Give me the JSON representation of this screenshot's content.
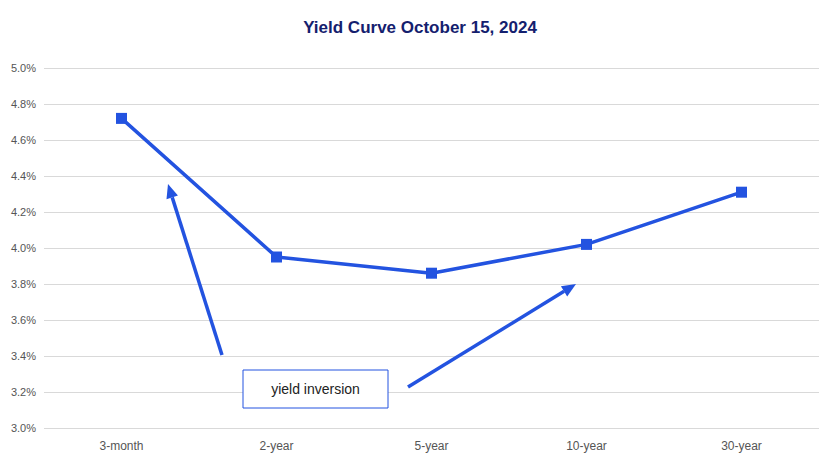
{
  "chart_data": {
    "type": "line",
    "title": "Yield Curve October 15, 2024",
    "categories": [
      "3-month",
      "2-year",
      "5-year",
      "10-year",
      "30-year"
    ],
    "values": [
      4.72,
      3.95,
      3.86,
      4.02,
      4.31
    ],
    "color": "#2353e0",
    "marker": "square",
    "ylim": [
      3.0,
      5.0
    ],
    "yticks": [
      {
        "value": 3.0,
        "label": "3.0%"
      },
      {
        "value": 3.2,
        "label": "3.2%"
      },
      {
        "value": 3.4,
        "label": "3.4%"
      },
      {
        "value": 3.6,
        "label": "3.6%"
      },
      {
        "value": 3.8,
        "label": "3.8%"
      },
      {
        "value": 4.0,
        "label": "4.0%"
      },
      {
        "value": 4.2,
        "label": "4.2%"
      },
      {
        "value": 4.4,
        "label": "4.4%"
      },
      {
        "value": 4.6,
        "label": "4.6%"
      },
      {
        "value": 4.8,
        "label": "4.8%"
      },
      {
        "value": 5.0,
        "label": "5.0%"
      }
    ],
    "grid": true,
    "annotations": [
      "yield inversion"
    ]
  }
}
